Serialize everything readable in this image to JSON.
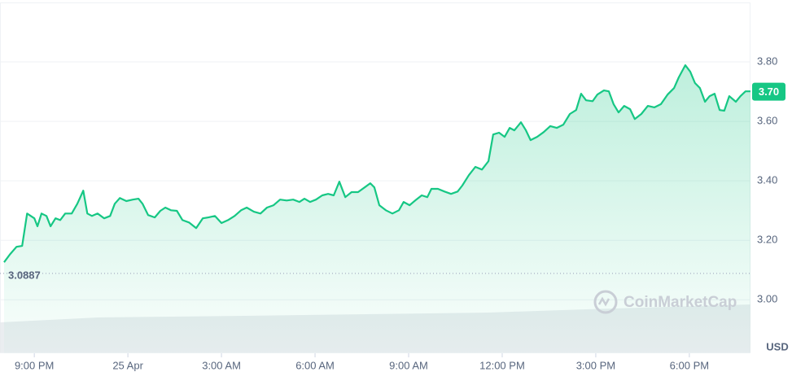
{
  "chart_data": {
    "type": "line",
    "x": [
      -0.97,
      -0.78,
      -0.57,
      -0.39,
      -0.23,
      0,
      0.1,
      0.23,
      0.39,
      0.52,
      0.68,
      0.83,
      0.99,
      1.2,
      1.38,
      1.57,
      1.7,
      1.85,
      2.03,
      2.24,
      2.43,
      2.58,
      2.74,
      2.95,
      3.16,
      3.34,
      3.47,
      3.65,
      3.86,
      4.04,
      4.2,
      4.38,
      4.57,
      4.75,
      4.96,
      5.19,
      5.4,
      5.58,
      5.79,
      6.0,
      6.21,
      6.42,
      6.63,
      6.81,
      7.04,
      7.25,
      7.46,
      7.67,
      7.88,
      8.09,
      8.3,
      8.5,
      8.66,
      8.84,
      9.03,
      9.23,
      9.42,
      9.6,
      9.78,
      9.97,
      10.17,
      10.38,
      10.59,
      10.77,
      10.9,
      11.06,
      11.27,
      11.48,
      11.69,
      11.84,
      12.03,
      12.21,
      12.42,
      12.6,
      12.73,
      12.94,
      13.15,
      13.36,
      13.57,
      13.72,
      13.93,
      14.14,
      14.35,
      14.56,
      14.71,
      14.9,
      15.08,
      15.24,
      15.39,
      15.6,
      15.76,
      15.91,
      16.12,
      16.33,
      16.54,
      16.75,
      16.96,
      17.17,
      17.37,
      17.53,
      17.69,
      17.9,
      18.05,
      18.26,
      18.42,
      18.57,
      18.73,
      18.91,
      19.1,
      19.25,
      19.46,
      19.67,
      19.88,
      20.09,
      20.3,
      20.51,
      20.66,
      20.87,
      21.03,
      21.18,
      21.34,
      21.5,
      21.65,
      21.81,
      21.97,
      22.12,
      22.28,
      22.49,
      22.64,
      22.8,
      22.96
    ],
    "series": [
      {
        "color": "#16c784",
        "values": [
          3.126,
          3.153,
          3.178,
          3.181,
          3.29,
          3.274,
          3.247,
          3.29,
          3.282,
          3.247,
          3.274,
          3.268,
          3.29,
          3.29,
          3.323,
          3.367,
          3.29,
          3.282,
          3.29,
          3.274,
          3.282,
          3.323,
          3.342,
          3.332,
          3.337,
          3.34,
          3.323,
          3.285,
          3.277,
          3.299,
          3.31,
          3.301,
          3.299,
          3.268,
          3.26,
          3.241,
          3.274,
          3.277,
          3.282,
          3.258,
          3.268,
          3.282,
          3.301,
          3.31,
          3.296,
          3.29,
          3.31,
          3.318,
          3.337,
          3.334,
          3.337,
          3.329,
          3.34,
          3.329,
          3.337,
          3.351,
          3.356,
          3.351,
          3.397,
          3.345,
          3.362,
          3.362,
          3.378,
          3.392,
          3.378,
          3.318,
          3.301,
          3.29,
          3.301,
          3.329,
          3.318,
          3.334,
          3.351,
          3.345,
          3.373,
          3.373,
          3.364,
          3.356,
          3.364,
          3.384,
          3.419,
          3.447,
          3.438,
          3.466,
          3.556,
          3.562,
          3.548,
          3.578,
          3.57,
          3.597,
          3.57,
          3.537,
          3.548,
          3.564,
          3.584,
          3.578,
          3.589,
          3.625,
          3.638,
          3.693,
          3.671,
          3.668,
          3.69,
          3.704,
          3.701,
          3.658,
          3.63,
          3.652,
          3.641,
          3.608,
          3.625,
          3.652,
          3.647,
          3.658,
          3.69,
          3.712,
          3.748,
          3.789,
          3.767,
          3.729,
          3.712,
          3.666,
          3.685,
          3.693,
          3.638,
          3.636,
          3.685,
          3.666,
          3.685,
          3.701,
          3.701
        ]
      }
    ],
    "xlim": [
      -1.1,
      22.96
    ],
    "xticks": [
      {
        "value": 0,
        "label": "9:00 PM"
      },
      {
        "value": 3,
        "label": "25 Apr"
      },
      {
        "value": 6,
        "label": "3:00 AM"
      },
      {
        "value": 9,
        "label": "6:00 AM"
      },
      {
        "value": 12,
        "label": "9:00 AM"
      },
      {
        "value": 15,
        "label": "12:00 PM"
      },
      {
        "value": 18,
        "label": "3:00 PM"
      },
      {
        "value": 21,
        "label": "6:00 PM"
      }
    ],
    "ylim": [
      2.82,
      4.0
    ],
    "yticks": [
      {
        "value": 3.0,
        "label": "3.00"
      },
      {
        "value": 3.2,
        "label": "3.20"
      },
      {
        "value": 3.4,
        "label": "3.40"
      },
      {
        "value": 3.6,
        "label": "3.60"
      },
      {
        "value": 3.8,
        "label": "3.80"
      }
    ],
    "reference_line": 3.0887,
    "current_price": {
      "value": 3.7,
      "label": "3.70"
    },
    "y_unit": "USD",
    "watermark": "CoinMarketCap",
    "grid": true
  }
}
